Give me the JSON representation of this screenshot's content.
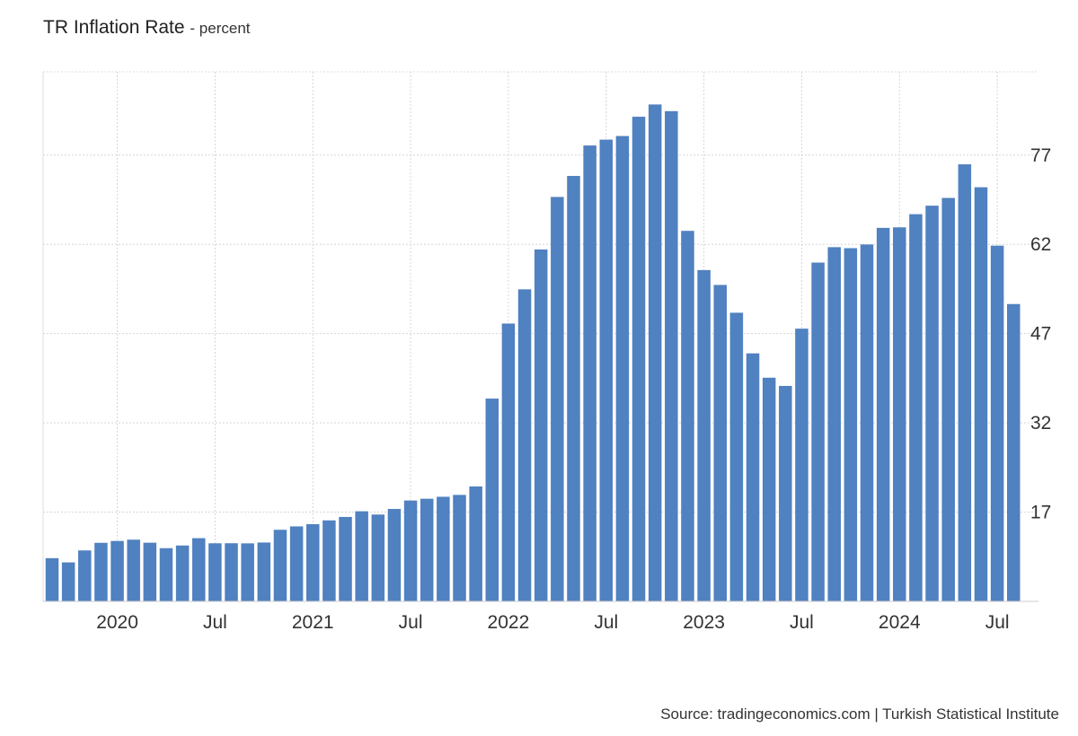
{
  "header": {
    "title": "TR Inflation Rate",
    "subtitle": "- percent"
  },
  "footer": {
    "source": "Source: tradingeconomics.com | Turkish Statistical Institute"
  },
  "chart_data": {
    "type": "bar",
    "title": "TR Inflation Rate",
    "ylabel": "percent",
    "color": "#5081c0",
    "grid": true,
    "y_axis_position": "right",
    "ylim": [
      2,
      91
    ],
    "yticks": [
      17,
      32,
      47,
      62,
      77
    ],
    "xtick_labels": [
      {
        "label": "2020",
        "month": "2020-01"
      },
      {
        "label": "Jul",
        "month": "2020-07"
      },
      {
        "label": "2021",
        "month": "2021-01"
      },
      {
        "label": "Jul",
        "month": "2021-07"
      },
      {
        "label": "2022",
        "month": "2022-01"
      },
      {
        "label": "Jul",
        "month": "2022-07"
      },
      {
        "label": "2023",
        "month": "2023-01"
      },
      {
        "label": "Jul",
        "month": "2023-07"
      },
      {
        "label": "2024",
        "month": "2024-01"
      },
      {
        "label": "Jul",
        "month": "2024-07"
      }
    ],
    "categories": [
      "2019-09",
      "2019-10",
      "2019-11",
      "2019-12",
      "2020-01",
      "2020-02",
      "2020-03",
      "2020-04",
      "2020-05",
      "2020-06",
      "2020-07",
      "2020-08",
      "2020-09",
      "2020-10",
      "2020-11",
      "2020-12",
      "2021-01",
      "2021-02",
      "2021-03",
      "2021-04",
      "2021-05",
      "2021-06",
      "2021-07",
      "2021-08",
      "2021-09",
      "2021-10",
      "2021-11",
      "2021-12",
      "2022-01",
      "2022-02",
      "2022-03",
      "2022-04",
      "2022-05",
      "2022-06",
      "2022-07",
      "2022-08",
      "2022-09",
      "2022-10",
      "2022-11",
      "2022-12",
      "2023-01",
      "2023-02",
      "2023-03",
      "2023-04",
      "2023-05",
      "2023-06",
      "2023-07",
      "2023-08",
      "2023-09",
      "2023-10",
      "2023-11",
      "2023-12",
      "2024-01",
      "2024-02",
      "2024-03",
      "2024-04",
      "2024-05",
      "2024-06",
      "2024-07",
      "2024-08"
    ],
    "values": [
      9.26,
      8.55,
      10.56,
      11.84,
      12.15,
      12.37,
      11.86,
      10.94,
      11.39,
      12.62,
      11.76,
      11.77,
      11.75,
      11.89,
      14.03,
      14.6,
      14.97,
      15.61,
      16.19,
      17.14,
      16.59,
      17.53,
      18.95,
      19.25,
      19.58,
      19.89,
      21.31,
      36.08,
      48.69,
      54.44,
      61.14,
      69.97,
      73.5,
      78.62,
      79.6,
      80.21,
      83.45,
      85.51,
      84.39,
      64.27,
      57.68,
      55.18,
      50.51,
      43.68,
      39.59,
      38.21,
      47.83,
      58.94,
      61.53,
      61.36,
      61.98,
      64.77,
      64.86,
      67.07,
      68.5,
      69.8,
      75.45,
      71.6,
      61.78,
      51.97
    ]
  }
}
